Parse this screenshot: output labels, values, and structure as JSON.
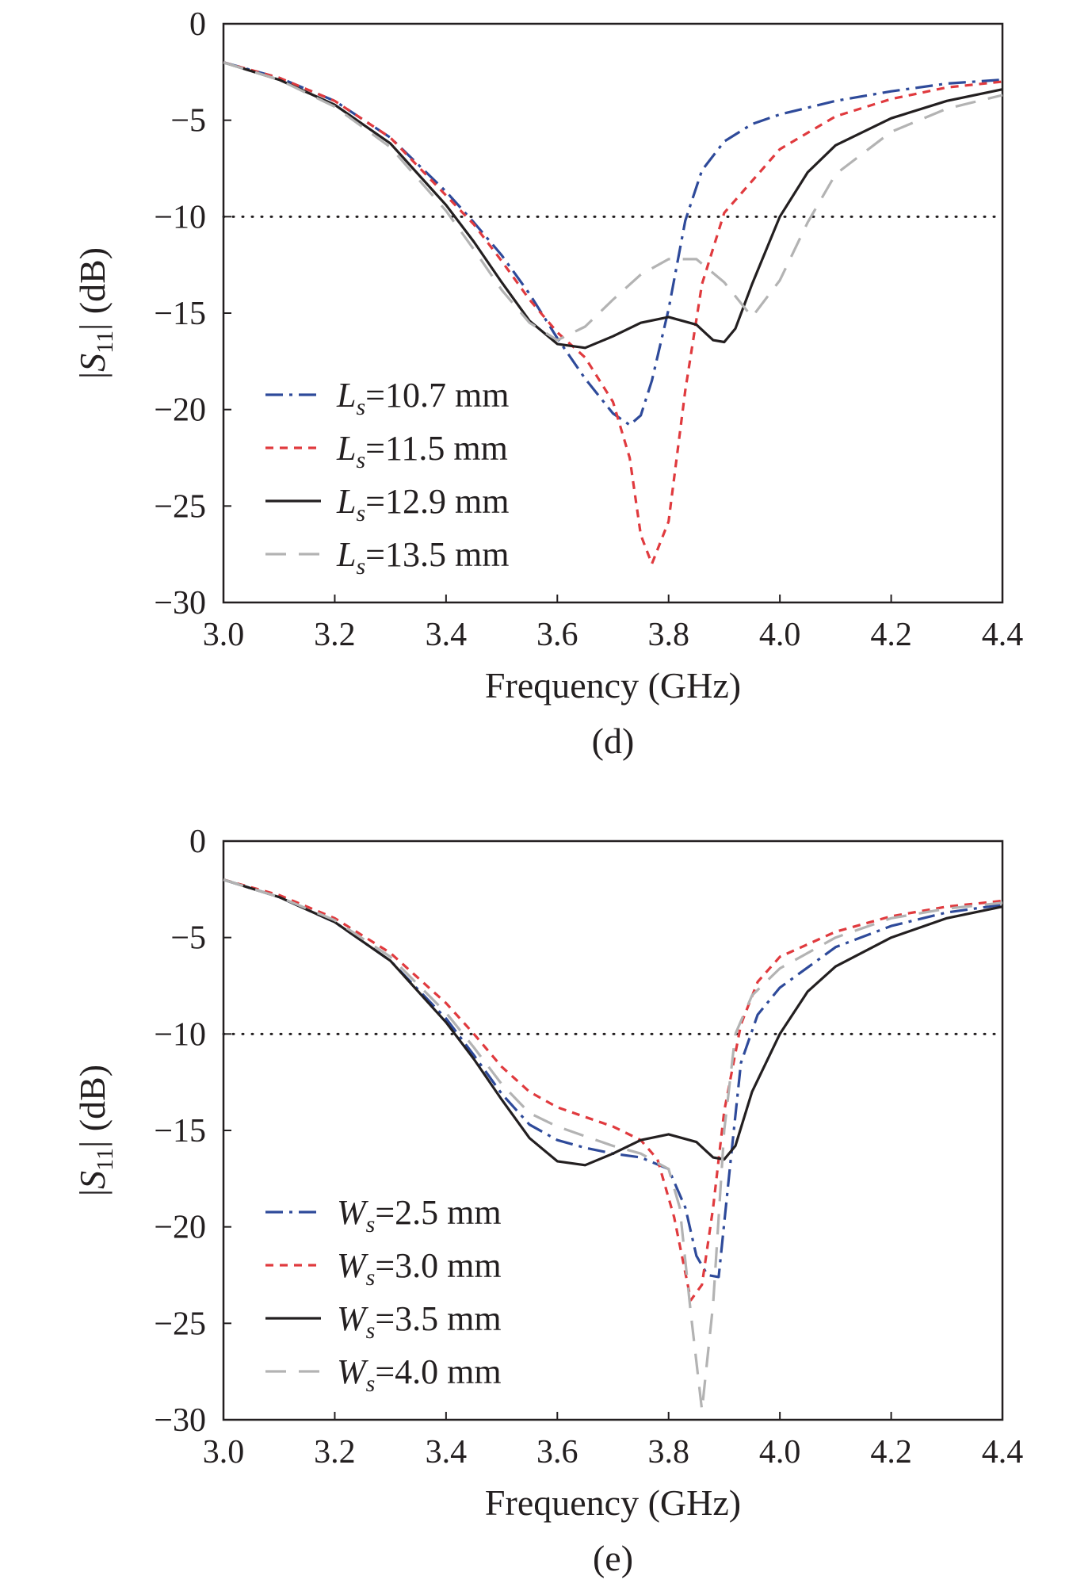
{
  "chart_data": [
    {
      "type": "line",
      "panel_label": "(d)",
      "xlabel": "Frequency (GHz)",
      "ylabel": "|S11| (dB)",
      "xlim": [
        3.0,
        4.4
      ],
      "ylim": [
        -30,
        0
      ],
      "xticks": [
        "3.0",
        "3.2",
        "3.4",
        "3.6",
        "3.8",
        "4.0",
        "4.2",
        "4.4"
      ],
      "yticks": [
        "0",
        "−5",
        "−10",
        "−15",
        "−20",
        "−25",
        "−30"
      ],
      "grid": false,
      "legend_position": "bottom-left",
      "reference_line": {
        "y": -10,
        "style": "dotted"
      },
      "series": [
        {
          "name": "Ls=10.7 mm",
          "legend_symbol": "L",
          "legend_sub": "s",
          "legend_value": "=10.7 mm",
          "color": "#2e4a9a",
          "dash": "dashdot",
          "x": [
            3.0,
            3.1,
            3.2,
            3.3,
            3.4,
            3.45,
            3.5,
            3.55,
            3.6,
            3.65,
            3.7,
            3.73,
            3.75,
            3.77,
            3.8,
            3.83,
            3.86,
            3.9,
            3.95,
            4.0,
            4.1,
            4.2,
            4.3,
            4.4
          ],
          "y": [
            -2.0,
            -2.8,
            -4.0,
            -5.9,
            -8.7,
            -10.3,
            -12.0,
            -14.0,
            -16.3,
            -18.4,
            -20.2,
            -20.8,
            -20.3,
            -18.5,
            -14.8,
            -10.2,
            -7.6,
            -6.1,
            -5.2,
            -4.7,
            -4.0,
            -3.5,
            -3.1,
            -2.9
          ]
        },
        {
          "name": "Ls=11.5 mm",
          "legend_symbol": "L",
          "legend_sub": "s",
          "legend_value": "=11.5 mm",
          "color": "#e03a3e",
          "dash": "short-dash",
          "x": [
            3.0,
            3.1,
            3.2,
            3.3,
            3.4,
            3.45,
            3.5,
            3.55,
            3.6,
            3.65,
            3.7,
            3.73,
            3.75,
            3.77,
            3.8,
            3.83,
            3.86,
            3.9,
            4.0,
            4.1,
            4.2,
            4.3,
            4.4
          ],
          "y": [
            -2.0,
            -2.8,
            -4.0,
            -5.9,
            -8.9,
            -10.4,
            -12.3,
            -14.3,
            -16.0,
            -17.3,
            -19.6,
            -22.5,
            -26.5,
            -28.0,
            -25.8,
            -19.0,
            -13.5,
            -9.8,
            -6.5,
            -4.8,
            -3.9,
            -3.3,
            -3.0
          ]
        },
        {
          "name": "Ls=12.9 mm",
          "legend_symbol": "L",
          "legend_sub": "s",
          "legend_value": "=12.9 mm",
          "color": "#231f20",
          "dash": "solid",
          "x": [
            3.0,
            3.1,
            3.2,
            3.3,
            3.4,
            3.45,
            3.5,
            3.55,
            3.6,
            3.65,
            3.7,
            3.75,
            3.8,
            3.85,
            3.88,
            3.9,
            3.92,
            3.95,
            4.0,
            4.05,
            4.1,
            4.2,
            4.3,
            4.4
          ],
          "y": [
            -2.0,
            -2.9,
            -4.2,
            -6.2,
            -9.4,
            -11.3,
            -13.4,
            -15.4,
            -16.6,
            -16.8,
            -16.2,
            -15.5,
            -15.2,
            -15.6,
            -16.4,
            -16.5,
            -15.8,
            -13.5,
            -10.0,
            -7.7,
            -6.3,
            -4.9,
            -4.0,
            -3.4
          ]
        },
        {
          "name": "Ls=13.5 mm",
          "legend_symbol": "L",
          "legend_sub": "s",
          "legend_value": "=13.5 mm",
          "color": "#b3b3b3",
          "dash": "long-dash",
          "x": [
            3.0,
            3.1,
            3.2,
            3.3,
            3.4,
            3.45,
            3.5,
            3.55,
            3.6,
            3.65,
            3.7,
            3.75,
            3.8,
            3.85,
            3.9,
            3.95,
            4.0,
            4.05,
            4.1,
            4.2,
            4.3,
            4.4
          ],
          "y": [
            -2.0,
            -2.9,
            -4.3,
            -6.4,
            -9.7,
            -11.7,
            -13.8,
            -15.5,
            -16.4,
            -15.7,
            -14.3,
            -13.0,
            -12.2,
            -12.2,
            -13.4,
            -15.2,
            -13.3,
            -10.3,
            -7.8,
            -5.6,
            -4.4,
            -3.7
          ]
        }
      ]
    },
    {
      "type": "line",
      "panel_label": "(e)",
      "xlabel": "Frequency (GHz)",
      "ylabel": "|S11| (dB)",
      "xlim": [
        3.0,
        4.4
      ],
      "ylim": [
        -30,
        0
      ],
      "xticks": [
        "3.0",
        "3.2",
        "3.4",
        "3.6",
        "3.8",
        "4.0",
        "4.2",
        "4.4"
      ],
      "yticks": [
        "0",
        "−5",
        "−10",
        "−15",
        "−20",
        "−25",
        "−30"
      ],
      "grid": false,
      "legend_position": "bottom-left",
      "reference_line": {
        "y": -10,
        "style": "dotted"
      },
      "series": [
        {
          "name": "Ws=2.5 mm",
          "legend_symbol": "W",
          "legend_sub": "s",
          "legend_value": "=2.5 mm",
          "color": "#2e4a9a",
          "dash": "dashdot",
          "x": [
            3.0,
            3.1,
            3.2,
            3.3,
            3.4,
            3.45,
            3.5,
            3.55,
            3.6,
            3.65,
            3.7,
            3.75,
            3.8,
            3.83,
            3.85,
            3.87,
            3.89,
            3.91,
            3.93,
            3.96,
            4.0,
            4.1,
            4.2,
            4.3,
            4.4
          ],
          "y": [
            -2.0,
            -2.9,
            -4.2,
            -6.2,
            -9.2,
            -11.1,
            -13.1,
            -14.7,
            -15.5,
            -15.9,
            -16.2,
            -16.4,
            -17.0,
            -19.0,
            -21.5,
            -22.5,
            -22.6,
            -17.0,
            -11.5,
            -9.0,
            -7.6,
            -5.5,
            -4.4,
            -3.7,
            -3.3
          ]
        },
        {
          "name": "Ws=3.0 mm",
          "legend_symbol": "W",
          "legend_sub": "s",
          "legend_value": "=3.0 mm",
          "color": "#e03a3e",
          "dash": "short-dash",
          "x": [
            3.0,
            3.1,
            3.2,
            3.3,
            3.4,
            3.45,
            3.5,
            3.55,
            3.6,
            3.65,
            3.7,
            3.75,
            3.78,
            3.81,
            3.84,
            3.86,
            3.88,
            3.9,
            3.93,
            3.96,
            4.0,
            4.1,
            4.2,
            4.3,
            4.4
          ],
          "y": [
            -2.0,
            -2.8,
            -4.0,
            -5.8,
            -8.4,
            -10.0,
            -11.7,
            -13.0,
            -13.8,
            -14.3,
            -14.8,
            -15.5,
            -16.5,
            -19.5,
            -23.8,
            -23.0,
            -19.0,
            -14.0,
            -9.5,
            -7.3,
            -6.0,
            -4.7,
            -3.9,
            -3.4,
            -3.1
          ]
        },
        {
          "name": "Ws=3.5 mm",
          "legend_symbol": "W",
          "legend_sub": "s",
          "legend_value": "=3.5 mm",
          "color": "#231f20",
          "dash": "solid",
          "x": [
            3.0,
            3.1,
            3.2,
            3.3,
            3.4,
            3.45,
            3.5,
            3.55,
            3.6,
            3.65,
            3.7,
            3.75,
            3.8,
            3.85,
            3.88,
            3.9,
            3.92,
            3.95,
            4.0,
            4.05,
            4.1,
            4.2,
            4.3,
            4.4
          ],
          "y": [
            -2.0,
            -2.9,
            -4.2,
            -6.2,
            -9.4,
            -11.3,
            -13.4,
            -15.4,
            -16.6,
            -16.8,
            -16.2,
            -15.5,
            -15.2,
            -15.6,
            -16.4,
            -16.5,
            -15.8,
            -13.0,
            -10.0,
            -7.8,
            -6.5,
            -5.0,
            -4.0,
            -3.4
          ]
        },
        {
          "name": "Ws=4.0 mm",
          "legend_symbol": "W",
          "legend_sub": "s",
          "legend_value": "=4.0 mm",
          "color": "#b3b3b3",
          "dash": "long-dash",
          "x": [
            3.0,
            3.1,
            3.2,
            3.3,
            3.4,
            3.45,
            3.5,
            3.55,
            3.6,
            3.65,
            3.7,
            3.75,
            3.8,
            3.82,
            3.84,
            3.86,
            3.88,
            3.9,
            3.92,
            3.95,
            4.0,
            4.1,
            4.2,
            4.3,
            4.4
          ],
          "y": [
            -2.0,
            -2.9,
            -4.1,
            -6.0,
            -8.9,
            -10.7,
            -12.6,
            -14.1,
            -14.8,
            -15.3,
            -15.8,
            -16.2,
            -17.0,
            -19.0,
            -24.5,
            -29.5,
            -24.0,
            -15.0,
            -10.0,
            -8.0,
            -6.6,
            -5.0,
            -4.0,
            -3.5,
            -3.2
          ]
        }
      ]
    }
  ]
}
